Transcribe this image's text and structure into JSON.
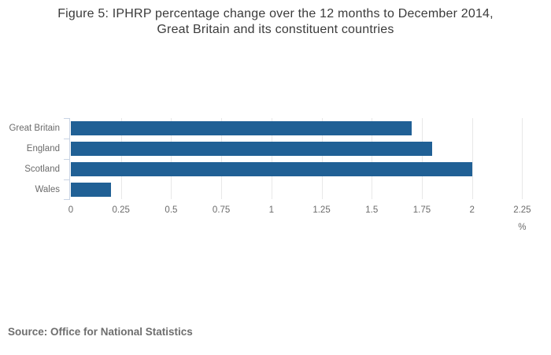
{
  "title": {
    "line1": "Figure 5: IPHRP percentage change over the 12 months to December 2014,",
    "line2": "Great Britain and its constituent countries"
  },
  "source": "Source: Office for National Statistics",
  "chart_data": {
    "type": "bar",
    "orientation": "horizontal",
    "title": "Figure 5: IPHRP percentage change over the 12 months to December 2014, Great Britain and its constituent countries",
    "categories": [
      "Great Britain",
      "England",
      "Scotland",
      "Wales"
    ],
    "values": [
      1.7,
      1.8,
      2.0,
      0.2
    ],
    "xlabel": "%",
    "xlim": [
      0,
      2.25
    ],
    "xtick_labels": [
      "0",
      "0.25",
      "0.5",
      "0.75",
      "1",
      "1.25",
      "1.5",
      "1.75",
      "2",
      "2.25"
    ],
    "grid": true,
    "legend": "none",
    "colors": {
      "bar": "#206095",
      "gridline": "#e8e8e8",
      "axis_line": "#c9d4e4",
      "labels": "#6b6b6b",
      "title_text": "#3b3b3b",
      "source_text": "#6e6e6e"
    }
  }
}
